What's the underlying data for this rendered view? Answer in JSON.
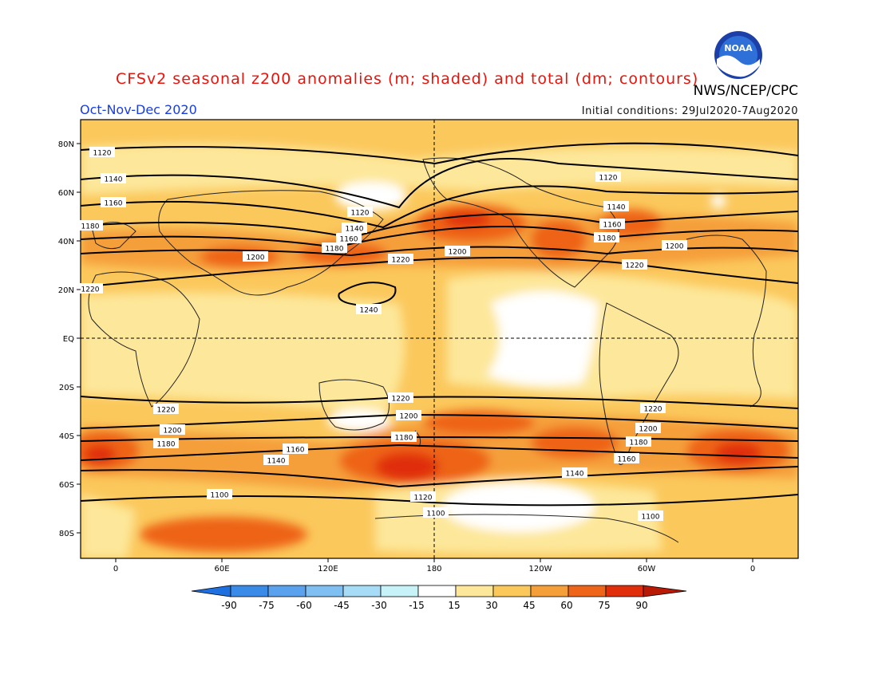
{
  "title": "CFSv2 seasonal z200 anomalies (m; shaded) and total (dm; contours)",
  "agency": "NWS/NCEP/CPC",
  "season": "Oct-Nov-Dec 2020",
  "initial_conditions": "Initial conditions: 29Jul2020-7Aug2020",
  "logo_text": "NOAA",
  "map": {
    "lat_labels": [
      "80N",
      "60N",
      "40N",
      "20N",
      "EQ",
      "20S",
      "40S",
      "60S",
      "80S"
    ],
    "lon_labels": [
      "0",
      "60E",
      "120E",
      "180",
      "120W",
      "60W",
      "0"
    ]
  },
  "contour_labels": [
    "1100",
    "1120",
    "1140",
    "1160",
    "1180",
    "1200",
    "1220",
    "1240"
  ],
  "colorbar": {
    "ticks": [
      "-90",
      "-75",
      "-60",
      "-45",
      "-30",
      "-15",
      "15",
      "30",
      "45",
      "60",
      "75",
      "90"
    ],
    "colors": [
      "#1e6fe0",
      "#3a8ae8",
      "#5aa2ee",
      "#80bff2",
      "#a6dcf6",
      "#c6f2f8",
      "#ffffff",
      "#fde79a",
      "#fbc85c",
      "#f59f3a",
      "#ee6418",
      "#e02e0a",
      "#b81a06"
    ]
  },
  "chart_data": {
    "type": "map-contour",
    "variable": "z200",
    "shading": "anomalies (m)",
    "contours": "total (dm)",
    "contour_levels": [
      1100,
      1120,
      1140,
      1160,
      1180,
      1200,
      1220,
      1240
    ]
  }
}
